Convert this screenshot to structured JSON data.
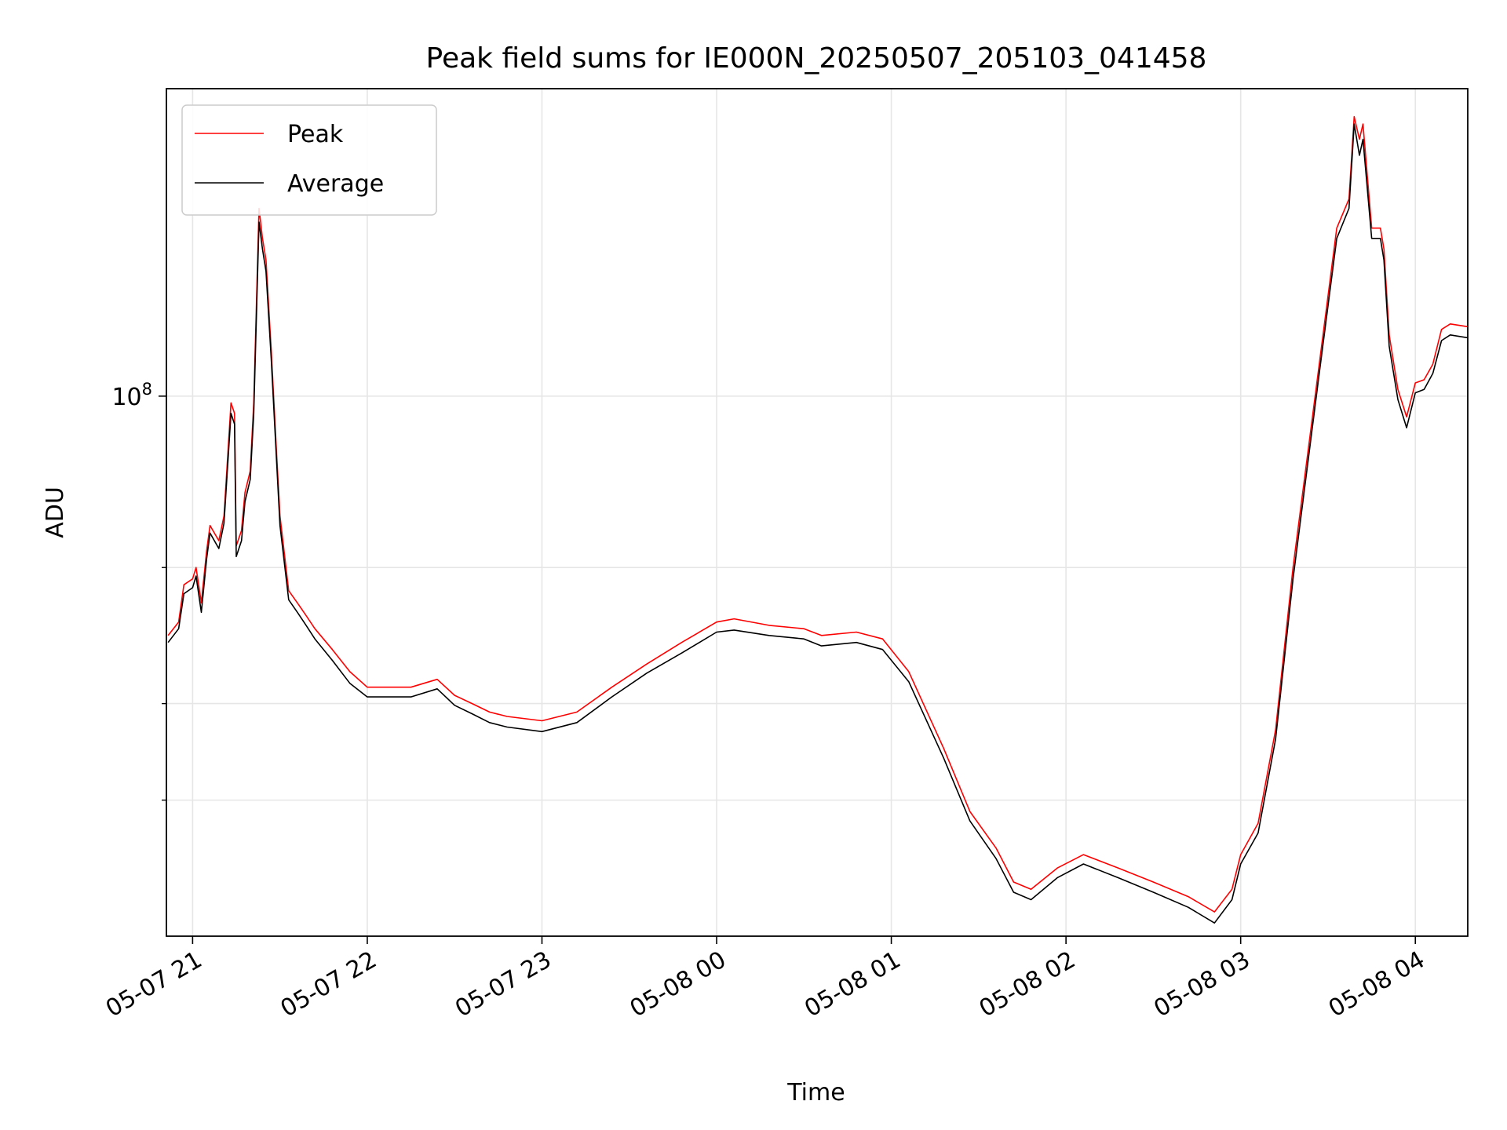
{
  "chart_data": {
    "type": "line",
    "title": "Peak field sums for IE000N_20250507_205103_041458",
    "xlabel": "Time",
    "ylabel": "ADU",
    "x_ticks": [
      "05-07 21",
      "05-07 22",
      "05-07 23",
      "05-08 00",
      "05-08 01",
      "05-08 02",
      "05-08 03",
      "05-08 04"
    ],
    "x_tick_hours": [
      0,
      1,
      2,
      3,
      4,
      5,
      6,
      7
    ],
    "xlim_hours": [
      -0.15,
      7.3
    ],
    "y_scale": "log",
    "ylim": [
      20000000,
      250000000
    ],
    "y_major_ticks": [
      100000000
    ],
    "y_major_tick_labels": [
      {
        "base": "10",
        "exp": "8"
      }
    ],
    "y_minor_ticks": [
      30000000,
      40000000,
      60000000
    ],
    "grid": true,
    "legend_position": "upper left",
    "series": [
      {
        "name": "Peak",
        "color": "#ff0000",
        "x_hours": [
          -0.14,
          -0.08,
          -0.05,
          0.0,
          0.02,
          0.05,
          0.08,
          0.1,
          0.15,
          0.18,
          0.22,
          0.24,
          0.25,
          0.28,
          0.3,
          0.33,
          0.35,
          0.38,
          0.4,
          0.42,
          0.45,
          0.48,
          0.5,
          0.55,
          0.6,
          0.65,
          0.7,
          0.8,
          0.9,
          1.0,
          1.1,
          1.25,
          1.4,
          1.5,
          1.6,
          1.7,
          1.8,
          2.0,
          2.2,
          2.4,
          2.6,
          2.8,
          3.0,
          3.1,
          3.3,
          3.5,
          3.6,
          3.8,
          3.95,
          4.1,
          4.3,
          4.45,
          4.6,
          4.7,
          4.8,
          4.95,
          5.1,
          5.3,
          5.5,
          5.7,
          5.85,
          5.95,
          6.0,
          6.1,
          6.2,
          6.3,
          6.45,
          6.55,
          6.62,
          6.65,
          6.68,
          6.7,
          6.75,
          6.8,
          6.82,
          6.85,
          6.9,
          6.95,
          7.0,
          7.05,
          7.1,
          7.15,
          7.2,
          7.3
        ],
        "values": [
          49000000,
          51000000,
          57000000,
          58000000,
          60000000,
          54000000,
          63000000,
          68000000,
          65000000,
          70000000,
          98000000,
          95000000,
          64000000,
          67000000,
          75000000,
          80000000,
          98000000,
          175000000,
          160000000,
          150000000,
          115000000,
          85000000,
          70000000,
          56000000,
          54000000,
          52000000,
          50000000,
          47000000,
          44000000,
          42000000,
          42000000,
          42000000,
          43000000,
          41000000,
          40000000,
          39000000,
          38500000,
          38000000,
          39000000,
          42000000,
          45000000,
          48000000,
          51000000,
          51500000,
          50500000,
          50000000,
          49000000,
          49500000,
          48500000,
          44000000,
          35000000,
          29000000,
          26000000,
          23500000,
          23000000,
          24500000,
          25500000,
          24500000,
          23500000,
          22500000,
          21500000,
          23000000,
          25500000,
          28000000,
          37000000,
          60000000,
          110000000,
          165000000,
          180000000,
          230000000,
          215000000,
          225000000,
          165000000,
          165000000,
          155000000,
          120000000,
          102000000,
          94000000,
          104000000,
          105000000,
          110000000,
          122000000,
          124000000,
          123000000
        ]
      },
      {
        "name": "Average",
        "color": "#000000",
        "x_hours": [
          -0.14,
          -0.08,
          -0.05,
          0.0,
          0.02,
          0.05,
          0.08,
          0.1,
          0.15,
          0.18,
          0.22,
          0.24,
          0.25,
          0.28,
          0.3,
          0.33,
          0.35,
          0.38,
          0.4,
          0.42,
          0.45,
          0.48,
          0.5,
          0.55,
          0.6,
          0.65,
          0.7,
          0.8,
          0.9,
          1.0,
          1.1,
          1.25,
          1.4,
          1.5,
          1.6,
          1.7,
          1.8,
          2.0,
          2.2,
          2.4,
          2.6,
          2.8,
          3.0,
          3.1,
          3.3,
          3.5,
          3.6,
          3.8,
          3.95,
          4.1,
          4.3,
          4.45,
          4.6,
          4.7,
          4.8,
          4.95,
          5.1,
          5.3,
          5.5,
          5.7,
          5.85,
          5.95,
          6.0,
          6.1,
          6.2,
          6.3,
          6.45,
          6.55,
          6.62,
          6.65,
          6.68,
          6.7,
          6.75,
          6.8,
          6.82,
          6.85,
          6.9,
          6.95,
          7.0,
          7.05,
          7.1,
          7.15,
          7.2,
          7.3
        ],
        "values": [
          48000000,
          50000000,
          55500000,
          56500000,
          58500000,
          52500000,
          61500000,
          66500000,
          63500000,
          68500000,
          95000000,
          92000000,
          62000000,
          65000000,
          73000000,
          78000000,
          95000000,
          168000000,
          155000000,
          145000000,
          112000000,
          83000000,
          68000000,
          54500000,
          52500000,
          50500000,
          48500000,
          45500000,
          42500000,
          40800000,
          40800000,
          40800000,
          41800000,
          39800000,
          38800000,
          37800000,
          37300000,
          36800000,
          37800000,
          40800000,
          43800000,
          46500000,
          49500000,
          49800000,
          49000000,
          48500000,
          47500000,
          48000000,
          47000000,
          42700000,
          34000000,
          28200000,
          25200000,
          22800000,
          22300000,
          23800000,
          24800000,
          23800000,
          22800000,
          21800000,
          20800000,
          22300000,
          24800000,
          27200000,
          36000000,
          58000000,
          107000000,
          160000000,
          175000000,
          225000000,
          205000000,
          215000000,
          160000000,
          160000000,
          150000000,
          116000000,
          99000000,
          91000000,
          101000000,
          102000000,
          107000000,
          118000000,
          120000000,
          119000000
        ]
      }
    ]
  }
}
